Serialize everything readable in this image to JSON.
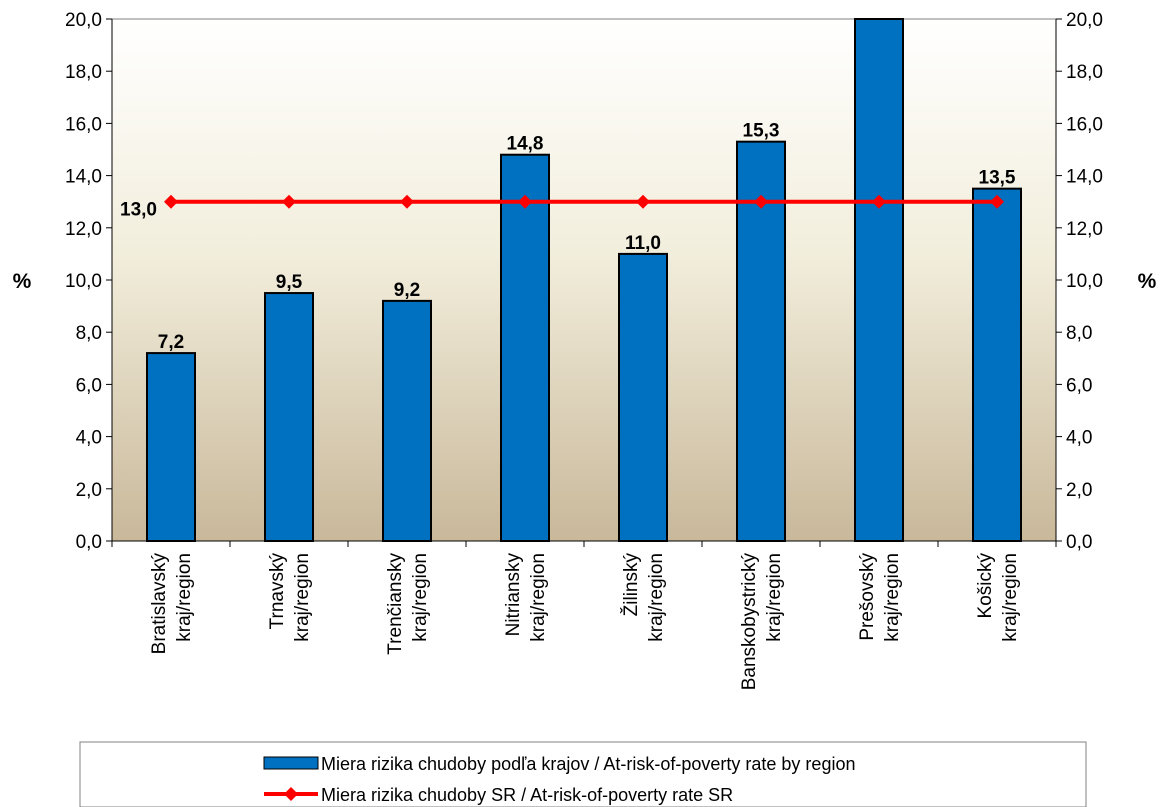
{
  "chart_data": {
    "type": "bar",
    "categories": [
      [
        "Bratislavský",
        "kraj/region"
      ],
      [
        "Trnavský",
        "kraj/region"
      ],
      [
        "Trenčiansky",
        "kraj/region"
      ],
      [
        "Nitriansky",
        "kraj/region"
      ],
      [
        "Žilinský",
        "kraj/region"
      ],
      [
        "Banskobystrický",
        "kraj/region"
      ],
      [
        "Prešovský",
        "kraj/region"
      ],
      [
        "Košický",
        "kraj/region"
      ]
    ],
    "series": [
      {
        "name": "Miera rizika chudoby podľa krajov / At-risk-of-poverty rate by region",
        "type": "bar",
        "color": "#0070C0",
        "values": [
          7.2,
          9.5,
          9.2,
          14.8,
          11.0,
          15.3,
          20.0,
          13.5
        ],
        "labels": [
          "7,2",
          "9,5",
          "9,2",
          "14,8",
          "11,0",
          "15,3",
          "",
          "13,5"
        ]
      },
      {
        "name": "Miera rizika chudoby SR / At-risk-of-poverty rate SR",
        "type": "line",
        "color": "#FF0000",
        "values": [
          13.0,
          13.0,
          13.0,
          13.0,
          13.0,
          13.0,
          13.0,
          13.0
        ],
        "labels": [
          "13,0",
          "",
          "",
          "",
          "",
          "",
          "",
          ""
        ]
      }
    ],
    "ylabel_left": "%",
    "ylabel_right": "%",
    "ylim": [
      0,
      20
    ],
    "yticks": [
      "0,0",
      "2,0",
      "4,0",
      "6,0",
      "8,0",
      "10,0",
      "12,0",
      "14,0",
      "16,0",
      "18,0",
      "20,0"
    ],
    "grid": false,
    "legend_position": "bottom",
    "plot_background": "gradient beige"
  }
}
